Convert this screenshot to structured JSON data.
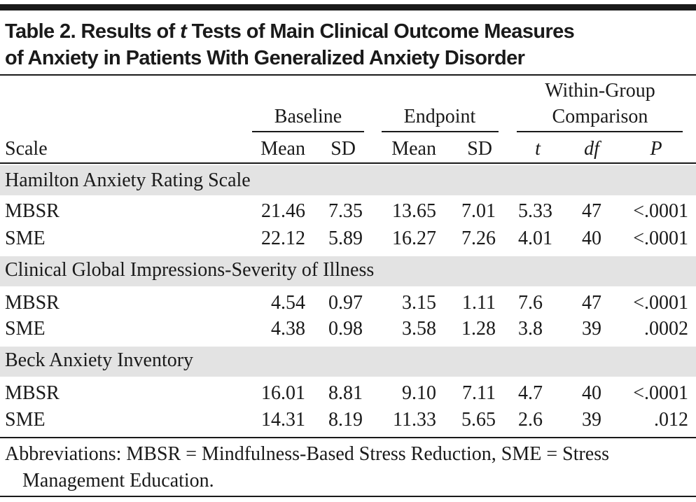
{
  "title": {
    "line1": [
      "Table 2. Results of ",
      "t",
      " Tests of Main Clinical Outcome Measures"
    ],
    "line2": "of Anxiety in Patients With Generalized Anxiety Disorder"
  },
  "header": {
    "groups": [
      "Baseline",
      "Endpoint",
      [
        "Within-Group",
        "Comparison"
      ]
    ],
    "columns": [
      "Scale",
      "Mean",
      "SD",
      "Mean",
      "SD",
      "t",
      "df",
      "P"
    ]
  },
  "sections": [
    {
      "label": "Hamilton Anxiety Rating Scale",
      "rows": [
        [
          "MBSR",
          "21.46",
          "7.35",
          "13.65",
          "7.01",
          "5.33",
          "47",
          "<.0001"
        ],
        [
          "SME",
          "22.12",
          "5.89",
          "16.27",
          "7.26",
          "4.01",
          "40",
          "<.0001"
        ]
      ]
    },
    {
      "label": "Clinical Global Impressions-Severity of Illness",
      "rows": [
        [
          "MBSR",
          "4.54",
          "0.97",
          "3.15",
          "1.11",
          "7.6",
          "47",
          "<.0001"
        ],
        [
          "SME",
          "4.38",
          "0.98",
          "3.58",
          "1.28",
          "3.8",
          "39",
          ".0002"
        ]
      ]
    },
    {
      "label": "Beck Anxiety Inventory",
      "rows": [
        [
          "MBSR",
          "16.01",
          "8.81",
          "9.10",
          "7.11",
          "4.7",
          "40",
          "<.0001"
        ],
        [
          "SME",
          "14.31",
          "8.19",
          "11.33",
          "5.65",
          "2.6",
          "39",
          ".012"
        ]
      ]
    }
  ],
  "footnote": "Abbreviations: MBSR = Mindfulness-Based Stress Reduction, SME = Stress Management Education."
}
